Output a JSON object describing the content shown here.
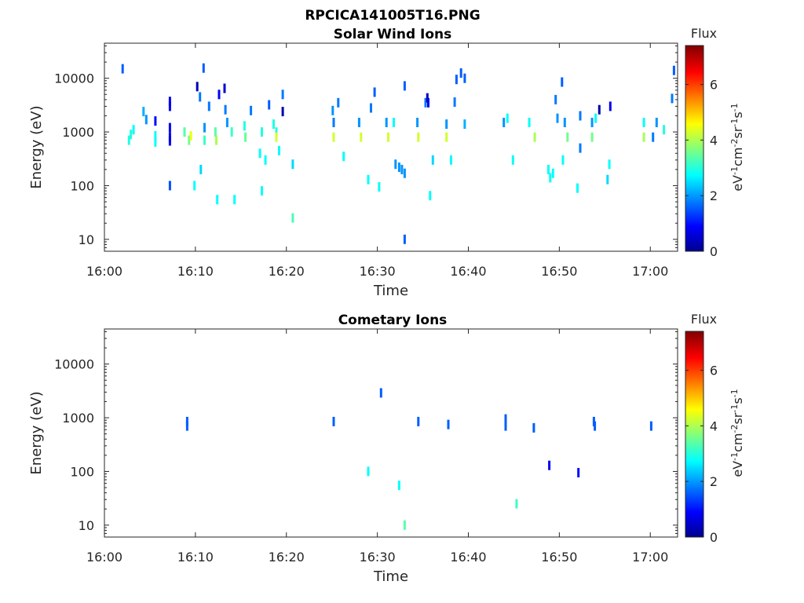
{
  "figure": {
    "title": "RPCICA141005T16.PNG"
  },
  "chart_data": [
    {
      "type": "heatmap",
      "title": "Solar Wind Ions",
      "xlabel": "Time",
      "ylabel": "Energy (eV)",
      "yscale": "log",
      "ylim": [
        6,
        45000
      ],
      "xlim": [
        "16:00",
        "17:03"
      ],
      "xticks": [
        "16:00",
        "16:10",
        "16:20",
        "16:30",
        "16:40",
        "16:50",
        "17:00"
      ],
      "yticks": [
        "10",
        "100",
        "1000",
        "10000"
      ],
      "colorbar": {
        "label": "Flux",
        "unit": "eV-1cm-2sr-1s-1",
        "range": [
          0,
          7.4
        ],
        "ticks": [
          "0",
          "2",
          "4",
          "6"
        ],
        "colormap": "jet"
      },
      "points": [
        {
          "t": 2.0,
          "e": 15000,
          "v": 1.6
        },
        {
          "t": 2.7,
          "e": 700,
          "v": 3.0
        },
        {
          "t": 2.9,
          "e": 900,
          "v": 3.0
        },
        {
          "t": 3.2,
          "e": 1100,
          "v": 2.8
        },
        {
          "t": 4.3,
          "e": 2400,
          "v": 2.2
        },
        {
          "t": 4.6,
          "e": 1700,
          "v": 2.0
        },
        {
          "t": 5.6,
          "e": 1600,
          "v": 1.0
        },
        {
          "t": 5.6,
          "e": 850,
          "v": 2.8
        },
        {
          "t": 5.6,
          "e": 650,
          "v": 2.8
        },
        {
          "t": 7.2,
          "e": 3700,
          "v": 0.8
        },
        {
          "t": 7.2,
          "e": 3000,
          "v": 0.8
        },
        {
          "t": 7.2,
          "e": 1200,
          "v": 0.8
        },
        {
          "t": 7.2,
          "e": 800,
          "v": 0.8
        },
        {
          "t": 7.2,
          "e": 680,
          "v": 0.8
        },
        {
          "t": 7.2,
          "e": 100,
          "v": 1.5
        },
        {
          "t": 8.8,
          "e": 1000,
          "v": 3.4
        },
        {
          "t": 9.3,
          "e": 700,
          "v": 3.6
        },
        {
          "t": 9.5,
          "e": 850,
          "v": 4.5
        },
        {
          "t": 9.9,
          "e": 100,
          "v": 2.8
        },
        {
          "t": 10.2,
          "e": 7000,
          "v": 0.4
        },
        {
          "t": 10.5,
          "e": 4500,
          "v": 1.8
        },
        {
          "t": 10.6,
          "e": 200,
          "v": 2.5
        },
        {
          "t": 10.9,
          "e": 15500,
          "v": 1.6
        },
        {
          "t": 11.0,
          "e": 1200,
          "v": 2.0
        },
        {
          "t": 11.0,
          "e": 700,
          "v": 3.2
        },
        {
          "t": 11.5,
          "e": 3000,
          "v": 1.8
        },
        {
          "t": 12.2,
          "e": 1000,
          "v": 3.4
        },
        {
          "t": 12.3,
          "e": 700,
          "v": 4.0
        },
        {
          "t": 12.4,
          "e": 55,
          "v": 2.8
        },
        {
          "t": 12.6,
          "e": 5000,
          "v": 0.9
        },
        {
          "t": 13.2,
          "e": 6500,
          "v": 0.6
        },
        {
          "t": 13.3,
          "e": 2600,
          "v": 1.8
        },
        {
          "t": 13.5,
          "e": 1500,
          "v": 2.0
        },
        {
          "t": 14.0,
          "e": 1000,
          "v": 3.2
        },
        {
          "t": 14.3,
          "e": 55,
          "v": 2.8
        },
        {
          "t": 15.4,
          "e": 1300,
          "v": 3.0
        },
        {
          "t": 15.5,
          "e": 800,
          "v": 3.5
        },
        {
          "t": 16.1,
          "e": 2500,
          "v": 1.8
        },
        {
          "t": 17.1,
          "e": 400,
          "v": 2.8
        },
        {
          "t": 17.3,
          "e": 80,
          "v": 2.8
        },
        {
          "t": 17.3,
          "e": 1000,
          "v": 3.0
        },
        {
          "t": 17.7,
          "e": 300,
          "v": 2.8
        },
        {
          "t": 18.1,
          "e": 3200,
          "v": 1.6
        },
        {
          "t": 18.6,
          "e": 1400,
          "v": 3.0
        },
        {
          "t": 18.9,
          "e": 1000,
          "v": 3.0
        },
        {
          "t": 18.9,
          "e": 800,
          "v": 4.3
        },
        {
          "t": 19.2,
          "e": 450,
          "v": 2.8
        },
        {
          "t": 19.6,
          "e": 2400,
          "v": 0.3
        },
        {
          "t": 19.6,
          "e": 5000,
          "v": 1.8
        },
        {
          "t": 20.7,
          "e": 25,
          "v": 3.3
        },
        {
          "t": 20.7,
          "e": 250,
          "v": 2.5
        },
        {
          "t": 25.1,
          "e": 2500,
          "v": 2.0
        },
        {
          "t": 25.2,
          "e": 1500,
          "v": 1.8
        },
        {
          "t": 25.2,
          "e": 800,
          "v": 4.3
        },
        {
          "t": 25.7,
          "e": 3500,
          "v": 1.8
        },
        {
          "t": 26.3,
          "e": 350,
          "v": 2.8
        },
        {
          "t": 28.0,
          "e": 1500,
          "v": 2.0
        },
        {
          "t": 28.2,
          "e": 800,
          "v": 4.3
        },
        {
          "t": 29.0,
          "e": 130,
          "v": 2.8
        },
        {
          "t": 29.3,
          "e": 2800,
          "v": 1.8
        },
        {
          "t": 29.7,
          "e": 5500,
          "v": 1.6
        },
        {
          "t": 30.2,
          "e": 95,
          "v": 2.8
        },
        {
          "t": 31.0,
          "e": 1500,
          "v": 2.0
        },
        {
          "t": 31.2,
          "e": 800,
          "v": 4.3
        },
        {
          "t": 31.8,
          "e": 1500,
          "v": 2.8
        },
        {
          "t": 32.0,
          "e": 250,
          "v": 2.0
        },
        {
          "t": 32.4,
          "e": 220,
          "v": 2.0
        },
        {
          "t": 32.7,
          "e": 200,
          "v": 2.0
        },
        {
          "t": 33.0,
          "e": 7200,
          "v": 1.6
        },
        {
          "t": 33.0,
          "e": 10,
          "v": 1.6
        },
        {
          "t": 33.0,
          "e": 170,
          "v": 2.0
        },
        {
          "t": 34.4,
          "e": 1500,
          "v": 2.0
        },
        {
          "t": 34.5,
          "e": 800,
          "v": 4.3
        },
        {
          "t": 35.3,
          "e": 3500,
          "v": 1.8
        },
        {
          "t": 35.5,
          "e": 4300,
          "v": 0.4
        },
        {
          "t": 35.6,
          "e": 3500,
          "v": 0.8
        },
        {
          "t": 35.8,
          "e": 65,
          "v": 2.8
        },
        {
          "t": 36.1,
          "e": 300,
          "v": 2.5
        },
        {
          "t": 37.6,
          "e": 1400,
          "v": 2.0
        },
        {
          "t": 37.6,
          "e": 800,
          "v": 4.3
        },
        {
          "t": 38.1,
          "e": 300,
          "v": 2.8
        },
        {
          "t": 38.5,
          "e": 3600,
          "v": 1.8
        },
        {
          "t": 38.7,
          "e": 9500,
          "v": 1.6
        },
        {
          "t": 39.2,
          "e": 12500,
          "v": 1.6
        },
        {
          "t": 39.6,
          "e": 10000,
          "v": 1.6
        },
        {
          "t": 39.6,
          "e": 1400,
          "v": 2.2
        },
        {
          "t": 43.9,
          "e": 1500,
          "v": 2.0
        },
        {
          "t": 44.3,
          "e": 1800,
          "v": 2.8
        },
        {
          "t": 44.9,
          "e": 300,
          "v": 2.8
        },
        {
          "t": 46.7,
          "e": 1500,
          "v": 2.8
        },
        {
          "t": 47.3,
          "e": 800,
          "v": 4.0
        },
        {
          "t": 48.8,
          "e": 200,
          "v": 2.8
        },
        {
          "t": 49.0,
          "e": 140,
          "v": 2.8
        },
        {
          "t": 49.3,
          "e": 170,
          "v": 2.8
        },
        {
          "t": 49.6,
          "e": 4000,
          "v": 1.8
        },
        {
          "t": 49.8,
          "e": 1800,
          "v": 2.0
        },
        {
          "t": 50.3,
          "e": 8500,
          "v": 1.6
        },
        {
          "t": 50.4,
          "e": 300,
          "v": 2.8
        },
        {
          "t": 50.6,
          "e": 1500,
          "v": 2.0
        },
        {
          "t": 50.9,
          "e": 800,
          "v": 3.6
        },
        {
          "t": 52.0,
          "e": 90,
          "v": 2.8
        },
        {
          "t": 52.3,
          "e": 2000,
          "v": 1.8
        },
        {
          "t": 52.3,
          "e": 500,
          "v": 1.8
        },
        {
          "t": 53.6,
          "e": 1500,
          "v": 2.0
        },
        {
          "t": 53.6,
          "e": 800,
          "v": 3.6
        },
        {
          "t": 54.0,
          "e": 1800,
          "v": 2.8
        },
        {
          "t": 54.4,
          "e": 2600,
          "v": 0.3
        },
        {
          "t": 55.3,
          "e": 130,
          "v": 2.5
        },
        {
          "t": 55.5,
          "e": 250,
          "v": 2.8
        },
        {
          "t": 55.6,
          "e": 3000,
          "v": 0.8
        },
        {
          "t": 59.3,
          "e": 1500,
          "v": 2.8
        },
        {
          "t": 59.3,
          "e": 800,
          "v": 4.0
        },
        {
          "t": 60.3,
          "e": 800,
          "v": 1.8
        },
        {
          "t": 60.7,
          "e": 1500,
          "v": 2.0
        },
        {
          "t": 61.5,
          "e": 1100,
          "v": 3.0
        },
        {
          "t": 62.4,
          "e": 4200,
          "v": 1.8
        },
        {
          "t": 62.6,
          "e": 14000,
          "v": 1.6
        }
      ]
    },
    {
      "type": "heatmap",
      "title": "Cometary Ions",
      "xlabel": "Time",
      "ylabel": "Energy (eV)",
      "yscale": "log",
      "ylim": [
        6,
        45000
      ],
      "xlim": [
        "16:00",
        "17:03"
      ],
      "xticks": [
        "16:00",
        "16:10",
        "16:20",
        "16:30",
        "16:40",
        "16:50",
        "17:00"
      ],
      "yticks": [
        "10",
        "100",
        "1000",
        "10000"
      ],
      "colorbar": {
        "label": "Flux",
        "unit": "eV-1cm-2sr-1s-1",
        "range": [
          0,
          7.4
        ],
        "ticks": [
          "0",
          "2",
          "4",
          "6"
        ],
        "colormap": "jet"
      },
      "points": [
        {
          "t": 9.1,
          "e": 850,
          "v": 1.6
        },
        {
          "t": 9.1,
          "e": 700,
          "v": 1.6
        },
        {
          "t": 25.2,
          "e": 850,
          "v": 1.6
        },
        {
          "t": 29.0,
          "e": 100,
          "v": 2.8
        },
        {
          "t": 30.4,
          "e": 2900,
          "v": 1.6
        },
        {
          "t": 32.4,
          "e": 55,
          "v": 2.8
        },
        {
          "t": 33.0,
          "e": 10,
          "v": 3.4
        },
        {
          "t": 34.5,
          "e": 850,
          "v": 1.6
        },
        {
          "t": 37.8,
          "e": 750,
          "v": 1.6
        },
        {
          "t": 44.1,
          "e": 950,
          "v": 1.6
        },
        {
          "t": 44.1,
          "e": 700,
          "v": 1.6
        },
        {
          "t": 45.3,
          "e": 25,
          "v": 3.2
        },
        {
          "t": 47.2,
          "e": 650,
          "v": 1.6
        },
        {
          "t": 48.9,
          "e": 130,
          "v": 0.8
        },
        {
          "t": 52.1,
          "e": 95,
          "v": 1.0
        },
        {
          "t": 53.8,
          "e": 850,
          "v": 1.6
        },
        {
          "t": 53.9,
          "e": 700,
          "v": 1.6
        },
        {
          "t": 60.1,
          "e": 700,
          "v": 1.6
        }
      ]
    }
  ]
}
